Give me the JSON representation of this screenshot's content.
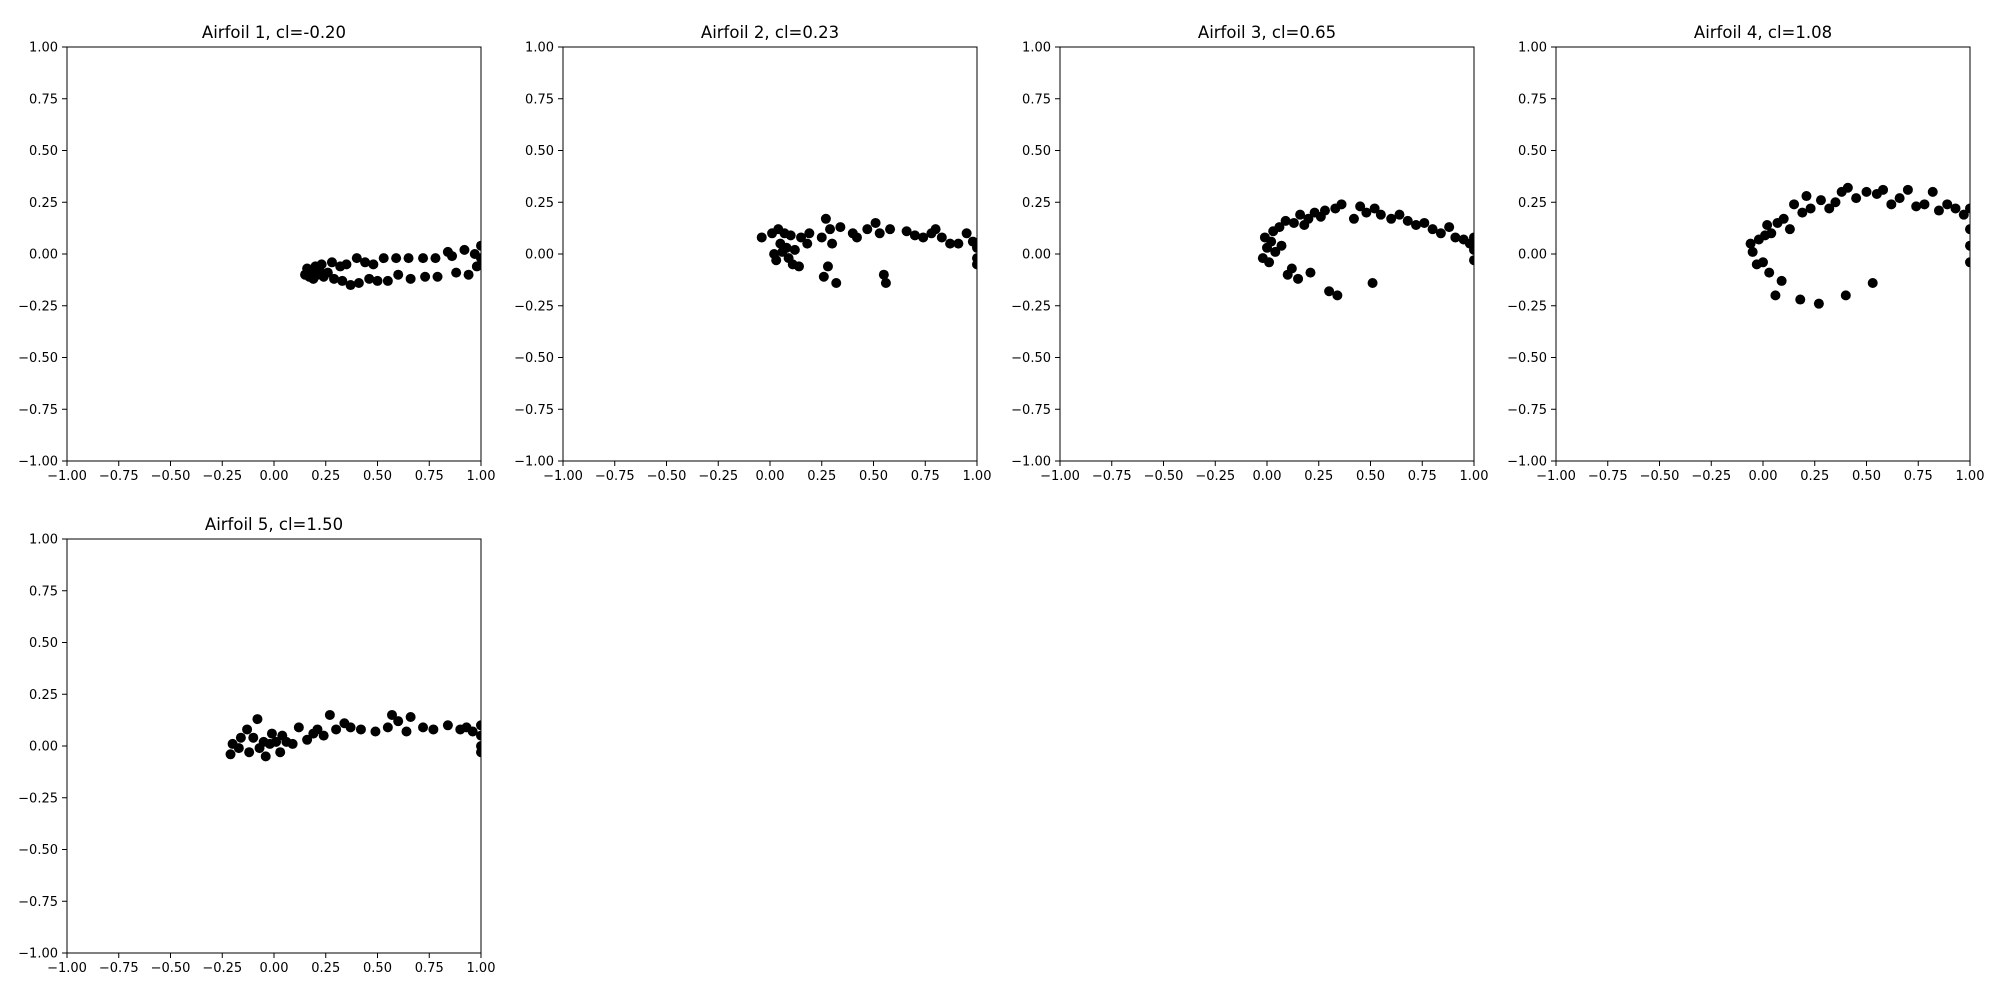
{
  "chart_data": [
    {
      "type": "scatter",
      "title": "Airfoil 1, cl=-0.20",
      "xlim": [
        -1,
        1
      ],
      "ylim": [
        -1,
        1
      ],
      "xticks": [
        "−1.00",
        "−0.75",
        "−0.50",
        "−0.25",
        "0.00",
        "0.25",
        "0.50",
        "0.75",
        "1.00"
      ],
      "yticks": [
        "−1.00",
        "−0.75",
        "−0.50",
        "−0.25",
        "0.00",
        "0.25",
        "0.50",
        "0.75",
        "1.00"
      ],
      "grid": false,
      "marker_color": "#000000",
      "points": [
        [
          0.15,
          -0.1
        ],
        [
          0.16,
          -0.07
        ],
        [
          0.17,
          -0.11
        ],
        [
          0.18,
          -0.08
        ],
        [
          0.19,
          -0.12
        ],
        [
          0.2,
          -0.06
        ],
        [
          0.21,
          -0.1
        ],
        [
          0.22,
          -0.08
        ],
        [
          0.23,
          -0.05
        ],
        [
          0.24,
          -0.11
        ],
        [
          0.26,
          -0.09
        ],
        [
          0.28,
          -0.04
        ],
        [
          0.29,
          -0.12
        ],
        [
          0.32,
          -0.06
        ],
        [
          0.33,
          -0.13
        ],
        [
          0.35,
          -0.05
        ],
        [
          0.37,
          -0.15
        ],
        [
          0.4,
          -0.02
        ],
        [
          0.41,
          -0.14
        ],
        [
          0.44,
          -0.04
        ],
        [
          0.46,
          -0.12
        ],
        [
          0.48,
          -0.05
        ],
        [
          0.5,
          -0.13
        ],
        [
          0.53,
          -0.02
        ],
        [
          0.55,
          -0.13
        ],
        [
          0.59,
          -0.02
        ],
        [
          0.6,
          -0.1
        ],
        [
          0.65,
          -0.02
        ],
        [
          0.66,
          -0.12
        ],
        [
          0.72,
          -0.02
        ],
        [
          0.73,
          -0.11
        ],
        [
          0.78,
          -0.02
        ],
        [
          0.79,
          -0.11
        ],
        [
          0.84,
          0.01
        ],
        [
          0.86,
          -0.01
        ],
        [
          0.88,
          -0.09
        ],
        [
          0.92,
          0.02
        ],
        [
          0.94,
          -0.1
        ],
        [
          0.97,
          0.0
        ],
        [
          0.98,
          -0.06
        ],
        [
          1.0,
          0.04
        ],
        [
          1.0,
          -0.02
        ]
      ]
    },
    {
      "type": "scatter",
      "title": "Airfoil 2, cl=0.23",
      "xlim": [
        -1,
        1
      ],
      "ylim": [
        -1,
        1
      ],
      "xticks": [
        "−1.00",
        "−0.75",
        "−0.50",
        "−0.25",
        "0.00",
        "0.25",
        "0.50",
        "0.75",
        "1.00"
      ],
      "yticks": [
        "−1.00",
        "−0.75",
        "−0.50",
        "−0.25",
        "0.00",
        "0.25",
        "0.50",
        "0.75",
        "1.00"
      ],
      "grid": false,
      "marker_color": "#000000",
      "points": [
        [
          -0.04,
          0.08
        ],
        [
          0.01,
          0.1
        ],
        [
          0.02,
          0.0
        ],
        [
          0.03,
          -0.03
        ],
        [
          0.04,
          0.12
        ],
        [
          0.05,
          0.05
        ],
        [
          0.06,
          0.01
        ],
        [
          0.07,
          0.1
        ],
        [
          0.08,
          0.03
        ],
        [
          0.09,
          -0.02
        ],
        [
          0.1,
          0.09
        ],
        [
          0.11,
          -0.05
        ],
        [
          0.12,
          0.02
        ],
        [
          0.14,
          -0.06
        ],
        [
          0.15,
          0.08
        ],
        [
          0.18,
          0.05
        ],
        [
          0.19,
          0.1
        ],
        [
          0.25,
          0.08
        ],
        [
          0.26,
          -0.11
        ],
        [
          0.27,
          0.17
        ],
        [
          0.28,
          -0.06
        ],
        [
          0.29,
          0.12
        ],
        [
          0.3,
          0.05
        ],
        [
          0.32,
          -0.14
        ],
        [
          0.34,
          0.13
        ],
        [
          0.4,
          0.1
        ],
        [
          0.42,
          0.08
        ],
        [
          0.47,
          0.12
        ],
        [
          0.51,
          0.15
        ],
        [
          0.53,
          0.1
        ],
        [
          0.55,
          -0.1
        ],
        [
          0.56,
          -0.14
        ],
        [
          0.58,
          0.12
        ],
        [
          0.66,
          0.11
        ],
        [
          0.7,
          0.09
        ],
        [
          0.74,
          0.08
        ],
        [
          0.78,
          0.1
        ],
        [
          0.8,
          0.12
        ],
        [
          0.83,
          0.08
        ],
        [
          0.87,
          0.05
        ],
        [
          0.91,
          0.05
        ],
        [
          0.95,
          0.1
        ],
        [
          0.98,
          0.06
        ],
        [
          1.0,
          0.03
        ],
        [
          1.0,
          -0.02
        ],
        [
          1.0,
          -0.05
        ]
      ]
    },
    {
      "type": "scatter",
      "title": "Airfoil 3, cl=0.65",
      "xlim": [
        -1,
        1
      ],
      "ylim": [
        -1,
        1
      ],
      "xticks": [
        "−1.00",
        "−0.75",
        "−0.50",
        "−0.25",
        "0.00",
        "0.25",
        "0.50",
        "0.75",
        "1.00"
      ],
      "yticks": [
        "−1.00",
        "−0.75",
        "−0.50",
        "−0.25",
        "0.00",
        "0.25",
        "0.50",
        "0.75",
        "1.00"
      ],
      "grid": false,
      "marker_color": "#000000",
      "points": [
        [
          -0.02,
          -0.02
        ],
        [
          -0.01,
          0.08
        ],
        [
          0.0,
          0.03
        ],
        [
          0.01,
          -0.04
        ],
        [
          0.02,
          0.06
        ],
        [
          0.03,
          0.11
        ],
        [
          0.04,
          0.01
        ],
        [
          0.06,
          0.13
        ],
        [
          0.07,
          0.04
        ],
        [
          0.09,
          0.16
        ],
        [
          0.1,
          -0.1
        ],
        [
          0.12,
          -0.07
        ],
        [
          0.13,
          0.15
        ],
        [
          0.15,
          -0.12
        ],
        [
          0.16,
          0.19
        ],
        [
          0.18,
          0.14
        ],
        [
          0.2,
          0.17
        ],
        [
          0.21,
          -0.09
        ],
        [
          0.23,
          0.2
        ],
        [
          0.26,
          0.18
        ],
        [
          0.28,
          0.21
        ],
        [
          0.3,
          -0.18
        ],
        [
          0.33,
          0.22
        ],
        [
          0.34,
          -0.2
        ],
        [
          0.36,
          0.24
        ],
        [
          0.42,
          0.17
        ],
        [
          0.45,
          0.23
        ],
        [
          0.48,
          0.2
        ],
        [
          0.51,
          -0.14
        ],
        [
          0.52,
          0.22
        ],
        [
          0.55,
          0.19
        ],
        [
          0.6,
          0.17
        ],
        [
          0.64,
          0.19
        ],
        [
          0.68,
          0.16
        ],
        [
          0.72,
          0.14
        ],
        [
          0.76,
          0.15
        ],
        [
          0.8,
          0.12
        ],
        [
          0.84,
          0.1
        ],
        [
          0.88,
          0.13
        ],
        [
          0.91,
          0.08
        ],
        [
          0.95,
          0.07
        ],
        [
          0.98,
          0.05
        ],
        [
          1.0,
          0.08
        ],
        [
          1.0,
          0.02
        ],
        [
          1.0,
          -0.03
        ]
      ]
    },
    {
      "type": "scatter",
      "title": "Airfoil 4, cl=1.08",
      "xlim": [
        -1,
        1
      ],
      "ylim": [
        -1,
        1
      ],
      "xticks": [
        "−1.00",
        "−0.75",
        "−0.50",
        "−0.25",
        "0.00",
        "0.25",
        "0.50",
        "0.75",
        "1.00"
      ],
      "yticks": [
        "−1.00",
        "−0.75",
        "−0.50",
        "−0.25",
        "0.00",
        "0.25",
        "0.50",
        "0.75",
        "1.00"
      ],
      "grid": false,
      "marker_color": "#000000",
      "points": [
        [
          -0.06,
          0.05
        ],
        [
          -0.05,
          0.01
        ],
        [
          -0.03,
          -0.05
        ],
        [
          -0.02,
          0.07
        ],
        [
          0.0,
          -0.04
        ],
        [
          0.01,
          0.09
        ],
        [
          0.02,
          0.14
        ],
        [
          0.03,
          -0.09
        ],
        [
          0.04,
          0.1
        ],
        [
          0.06,
          -0.2
        ],
        [
          0.07,
          0.15
        ],
        [
          0.09,
          -0.13
        ],
        [
          0.1,
          0.17
        ],
        [
          0.13,
          0.12
        ],
        [
          0.15,
          0.24
        ],
        [
          0.18,
          -0.22
        ],
        [
          0.19,
          0.2
        ],
        [
          0.21,
          0.28
        ],
        [
          0.23,
          0.22
        ],
        [
          0.27,
          -0.24
        ],
        [
          0.28,
          0.26
        ],
        [
          0.32,
          0.22
        ],
        [
          0.35,
          0.25
        ],
        [
          0.38,
          0.3
        ],
        [
          0.4,
          -0.2
        ],
        [
          0.41,
          0.32
        ],
        [
          0.45,
          0.27
        ],
        [
          0.5,
          0.3
        ],
        [
          0.53,
          -0.14
        ],
        [
          0.55,
          0.29
        ],
        [
          0.58,
          0.31
        ],
        [
          0.62,
          0.24
        ],
        [
          0.66,
          0.27
        ],
        [
          0.7,
          0.31
        ],
        [
          0.74,
          0.23
        ],
        [
          0.78,
          0.24
        ],
        [
          0.82,
          0.3
        ],
        [
          0.85,
          0.21
        ],
        [
          0.89,
          0.24
        ],
        [
          0.93,
          0.22
        ],
        [
          0.97,
          0.19
        ],
        [
          1.0,
          0.22
        ],
        [
          1.0,
          0.12
        ],
        [
          1.0,
          0.04
        ],
        [
          1.0,
          -0.04
        ]
      ]
    },
    {
      "type": "scatter",
      "title": "Airfoil 5, cl=1.50",
      "xlim": [
        -1,
        1
      ],
      "ylim": [
        -1,
        1
      ],
      "xticks": [
        "−1.00",
        "−0.75",
        "−0.50",
        "−0.25",
        "0.00",
        "0.25",
        "0.50",
        "0.75",
        "1.00"
      ],
      "yticks": [
        "−1.00",
        "−0.75",
        "−0.50",
        "−0.25",
        "0.00",
        "0.25",
        "0.50",
        "0.75",
        "1.00"
      ],
      "grid": false,
      "marker_color": "#000000",
      "points": [
        [
          -0.21,
          -0.04
        ],
        [
          -0.2,
          0.01
        ],
        [
          -0.17,
          -0.01
        ],
        [
          -0.16,
          0.04
        ],
        [
          -0.13,
          0.08
        ],
        [
          -0.12,
          -0.03
        ],
        [
          -0.1,
          0.04
        ],
        [
          -0.08,
          0.13
        ],
        [
          -0.07,
          -0.01
        ],
        [
          -0.05,
          0.02
        ],
        [
          -0.04,
          -0.05
        ],
        [
          -0.02,
          0.01
        ],
        [
          -0.01,
          0.06
        ],
        [
          0.01,
          0.02
        ],
        [
          0.03,
          -0.03
        ],
        [
          0.04,
          0.05
        ],
        [
          0.06,
          0.02
        ],
        [
          0.09,
          0.01
        ],
        [
          0.12,
          0.09
        ],
        [
          0.16,
          0.03
        ],
        [
          0.19,
          0.06
        ],
        [
          0.21,
          0.08
        ],
        [
          0.24,
          0.05
        ],
        [
          0.27,
          0.15
        ],
        [
          0.3,
          0.08
        ],
        [
          0.34,
          0.11
        ],
        [
          0.37,
          0.09
        ],
        [
          0.42,
          0.08
        ],
        [
          0.49,
          0.07
        ],
        [
          0.55,
          0.09
        ],
        [
          0.57,
          0.15
        ],
        [
          0.6,
          0.12
        ],
        [
          0.64,
          0.07
        ],
        [
          0.66,
          0.14
        ],
        [
          0.72,
          0.09
        ],
        [
          0.77,
          0.08
        ],
        [
          0.84,
          0.1
        ],
        [
          0.9,
          0.08
        ],
        [
          0.93,
          0.09
        ],
        [
          0.96,
          0.07
        ],
        [
          1.0,
          0.1
        ],
        [
          1.0,
          0.05
        ],
        [
          1.0,
          0.0
        ],
        [
          1.0,
          -0.03
        ]
      ]
    }
  ]
}
